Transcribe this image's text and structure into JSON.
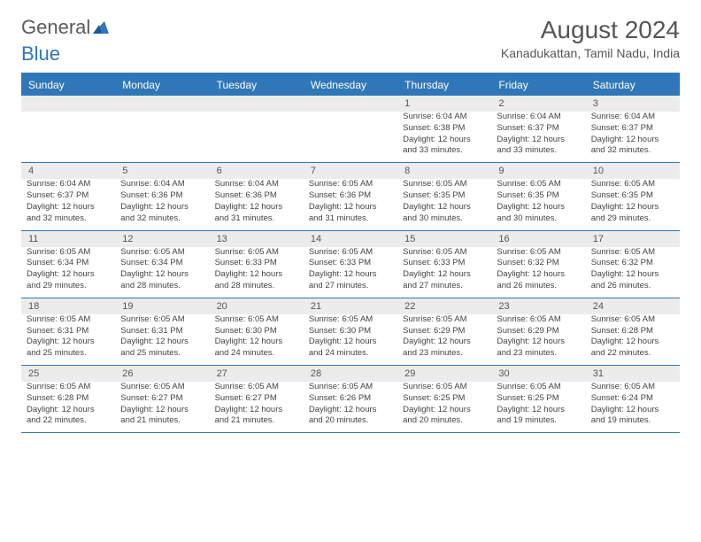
{
  "logo": {
    "part1": "General",
    "part2": "Blue"
  },
  "title": "August 2024",
  "subtitle": "Kanadukattan, Tamil Nadu, India",
  "colors": {
    "accent": "#2f77b8",
    "daynum_bg": "#ececec",
    "text": "#444444",
    "title_text": "#555555",
    "background": "#ffffff"
  },
  "typography": {
    "title_fontsize": 28,
    "subtitle_fontsize": 14,
    "dow_fontsize": 12,
    "daynum_fontsize": 11,
    "info_fontsize": 9.5,
    "logo_fontsize": 22
  },
  "layout": {
    "columns": 7,
    "rows": 5
  },
  "days_of_week": [
    "Sunday",
    "Monday",
    "Tuesday",
    "Wednesday",
    "Thursday",
    "Friday",
    "Saturday"
  ],
  "weeks": [
    [
      {
        "num": "",
        "sunrise": "",
        "sunset": "",
        "daylight": ""
      },
      {
        "num": "",
        "sunrise": "",
        "sunset": "",
        "daylight": ""
      },
      {
        "num": "",
        "sunrise": "",
        "sunset": "",
        "daylight": ""
      },
      {
        "num": "",
        "sunrise": "",
        "sunset": "",
        "daylight": ""
      },
      {
        "num": "1",
        "sunrise": "Sunrise: 6:04 AM",
        "sunset": "Sunset: 6:38 PM",
        "daylight": "Daylight: 12 hours and 33 minutes."
      },
      {
        "num": "2",
        "sunrise": "Sunrise: 6:04 AM",
        "sunset": "Sunset: 6:37 PM",
        "daylight": "Daylight: 12 hours and 33 minutes."
      },
      {
        "num": "3",
        "sunrise": "Sunrise: 6:04 AM",
        "sunset": "Sunset: 6:37 PM",
        "daylight": "Daylight: 12 hours and 32 minutes."
      }
    ],
    [
      {
        "num": "4",
        "sunrise": "Sunrise: 6:04 AM",
        "sunset": "Sunset: 6:37 PM",
        "daylight": "Daylight: 12 hours and 32 minutes."
      },
      {
        "num": "5",
        "sunrise": "Sunrise: 6:04 AM",
        "sunset": "Sunset: 6:36 PM",
        "daylight": "Daylight: 12 hours and 32 minutes."
      },
      {
        "num": "6",
        "sunrise": "Sunrise: 6:04 AM",
        "sunset": "Sunset: 6:36 PM",
        "daylight": "Daylight: 12 hours and 31 minutes."
      },
      {
        "num": "7",
        "sunrise": "Sunrise: 6:05 AM",
        "sunset": "Sunset: 6:36 PM",
        "daylight": "Daylight: 12 hours and 31 minutes."
      },
      {
        "num": "8",
        "sunrise": "Sunrise: 6:05 AM",
        "sunset": "Sunset: 6:35 PM",
        "daylight": "Daylight: 12 hours and 30 minutes."
      },
      {
        "num": "9",
        "sunrise": "Sunrise: 6:05 AM",
        "sunset": "Sunset: 6:35 PM",
        "daylight": "Daylight: 12 hours and 30 minutes."
      },
      {
        "num": "10",
        "sunrise": "Sunrise: 6:05 AM",
        "sunset": "Sunset: 6:35 PM",
        "daylight": "Daylight: 12 hours and 29 minutes."
      }
    ],
    [
      {
        "num": "11",
        "sunrise": "Sunrise: 6:05 AM",
        "sunset": "Sunset: 6:34 PM",
        "daylight": "Daylight: 12 hours and 29 minutes."
      },
      {
        "num": "12",
        "sunrise": "Sunrise: 6:05 AM",
        "sunset": "Sunset: 6:34 PM",
        "daylight": "Daylight: 12 hours and 28 minutes."
      },
      {
        "num": "13",
        "sunrise": "Sunrise: 6:05 AM",
        "sunset": "Sunset: 6:33 PM",
        "daylight": "Daylight: 12 hours and 28 minutes."
      },
      {
        "num": "14",
        "sunrise": "Sunrise: 6:05 AM",
        "sunset": "Sunset: 6:33 PM",
        "daylight": "Daylight: 12 hours and 27 minutes."
      },
      {
        "num": "15",
        "sunrise": "Sunrise: 6:05 AM",
        "sunset": "Sunset: 6:33 PM",
        "daylight": "Daylight: 12 hours and 27 minutes."
      },
      {
        "num": "16",
        "sunrise": "Sunrise: 6:05 AM",
        "sunset": "Sunset: 6:32 PM",
        "daylight": "Daylight: 12 hours and 26 minutes."
      },
      {
        "num": "17",
        "sunrise": "Sunrise: 6:05 AM",
        "sunset": "Sunset: 6:32 PM",
        "daylight": "Daylight: 12 hours and 26 minutes."
      }
    ],
    [
      {
        "num": "18",
        "sunrise": "Sunrise: 6:05 AM",
        "sunset": "Sunset: 6:31 PM",
        "daylight": "Daylight: 12 hours and 25 minutes."
      },
      {
        "num": "19",
        "sunrise": "Sunrise: 6:05 AM",
        "sunset": "Sunset: 6:31 PM",
        "daylight": "Daylight: 12 hours and 25 minutes."
      },
      {
        "num": "20",
        "sunrise": "Sunrise: 6:05 AM",
        "sunset": "Sunset: 6:30 PM",
        "daylight": "Daylight: 12 hours and 24 minutes."
      },
      {
        "num": "21",
        "sunrise": "Sunrise: 6:05 AM",
        "sunset": "Sunset: 6:30 PM",
        "daylight": "Daylight: 12 hours and 24 minutes."
      },
      {
        "num": "22",
        "sunrise": "Sunrise: 6:05 AM",
        "sunset": "Sunset: 6:29 PM",
        "daylight": "Daylight: 12 hours and 23 minutes."
      },
      {
        "num": "23",
        "sunrise": "Sunrise: 6:05 AM",
        "sunset": "Sunset: 6:29 PM",
        "daylight": "Daylight: 12 hours and 23 minutes."
      },
      {
        "num": "24",
        "sunrise": "Sunrise: 6:05 AM",
        "sunset": "Sunset: 6:28 PM",
        "daylight": "Daylight: 12 hours and 22 minutes."
      }
    ],
    [
      {
        "num": "25",
        "sunrise": "Sunrise: 6:05 AM",
        "sunset": "Sunset: 6:28 PM",
        "daylight": "Daylight: 12 hours and 22 minutes."
      },
      {
        "num": "26",
        "sunrise": "Sunrise: 6:05 AM",
        "sunset": "Sunset: 6:27 PM",
        "daylight": "Daylight: 12 hours and 21 minutes."
      },
      {
        "num": "27",
        "sunrise": "Sunrise: 6:05 AM",
        "sunset": "Sunset: 6:27 PM",
        "daylight": "Daylight: 12 hours and 21 minutes."
      },
      {
        "num": "28",
        "sunrise": "Sunrise: 6:05 AM",
        "sunset": "Sunset: 6:26 PM",
        "daylight": "Daylight: 12 hours and 20 minutes."
      },
      {
        "num": "29",
        "sunrise": "Sunrise: 6:05 AM",
        "sunset": "Sunset: 6:25 PM",
        "daylight": "Daylight: 12 hours and 20 minutes."
      },
      {
        "num": "30",
        "sunrise": "Sunrise: 6:05 AM",
        "sunset": "Sunset: 6:25 PM",
        "daylight": "Daylight: 12 hours and 19 minutes."
      },
      {
        "num": "31",
        "sunrise": "Sunrise: 6:05 AM",
        "sunset": "Sunset: 6:24 PM",
        "daylight": "Daylight: 12 hours and 19 minutes."
      }
    ]
  ]
}
